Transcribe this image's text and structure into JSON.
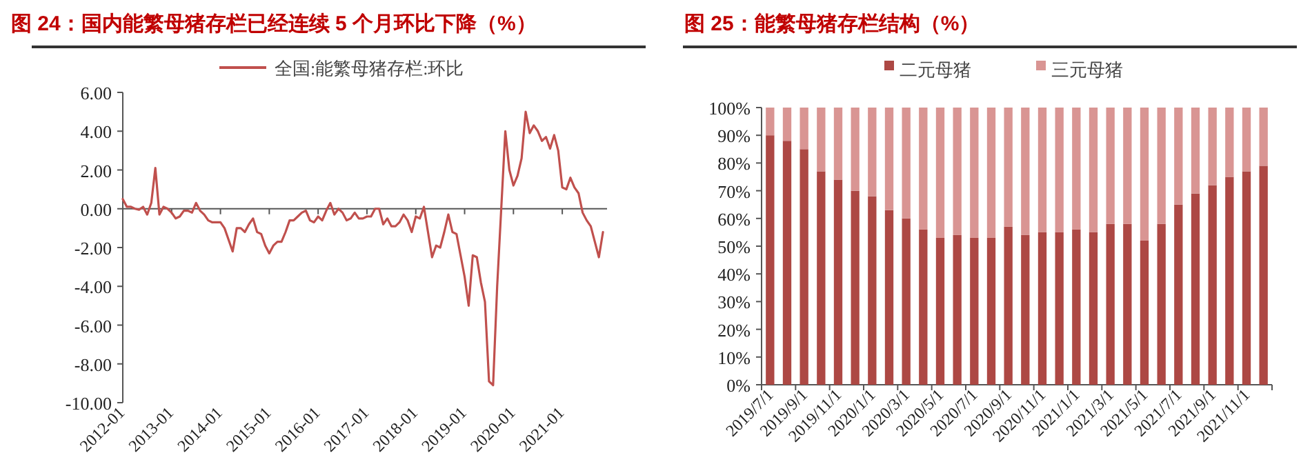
{
  "chart_data": [
    {
      "type": "line",
      "title": "图 24：国内能繁母猪存栏已经连续 5 个月环比下降（%）",
      "legend": "top",
      "line_style": "solid",
      "categories": [
        "2012-01",
        null,
        null,
        null,
        null,
        null,
        null,
        null,
        null,
        null,
        null,
        null,
        "2013-01",
        null,
        null,
        null,
        null,
        null,
        null,
        null,
        null,
        null,
        null,
        null,
        "2014-01",
        null,
        null,
        null,
        null,
        null,
        null,
        null,
        null,
        null,
        null,
        null,
        "2015-01",
        null,
        null,
        null,
        null,
        null,
        null,
        null,
        null,
        null,
        null,
        null,
        "2016-01",
        null,
        null,
        null,
        null,
        null,
        null,
        null,
        null,
        null,
        null,
        null,
        "2017-01",
        null,
        null,
        null,
        null,
        null,
        null,
        null,
        null,
        null,
        null,
        null,
        "2018-01",
        null,
        null,
        null,
        null,
        null,
        null,
        null,
        null,
        null,
        null,
        null,
        "2019-01",
        null,
        null,
        null,
        null,
        null,
        null,
        null,
        null,
        null,
        null,
        null,
        "2020-01",
        null,
        null,
        null,
        null,
        null,
        null,
        null,
        null,
        null,
        null,
        null,
        "2021-01",
        null,
        null,
        null,
        null,
        null,
        null,
        null,
        null,
        null,
        null
      ],
      "ylim": [
        -10,
        6
      ],
      "yticks": [
        {
          "value": -10,
          "label": "-10.00"
        },
        {
          "value": -8,
          "label": "-8.00"
        },
        {
          "value": -6,
          "label": "-6.00"
        },
        {
          "value": -4,
          "label": "-4.00"
        },
        {
          "value": -2,
          "label": "-2.00"
        },
        {
          "value": 0,
          "label": "0.00"
        },
        {
          "value": 2,
          "label": "2.00"
        },
        {
          "value": 4,
          "label": "4.00"
        },
        {
          "value": 6,
          "label": "6.00"
        }
      ],
      "series": [
        {
          "name": "全国:能繁母猪存栏:环比",
          "color": "#c0504d",
          "values": [
            0.5,
            0.1,
            0.1,
            0.0,
            -0.05,
            0.1,
            -0.3,
            0.3,
            2.1,
            -0.3,
            0.1,
            0.0,
            -0.2,
            -0.5,
            -0.4,
            -0.1,
            -0.1,
            -0.2,
            0.3,
            -0.1,
            -0.3,
            -0.6,
            -0.7,
            -0.7,
            -0.7,
            -1.0,
            -1.6,
            -2.2,
            -1.0,
            -1.0,
            -1.2,
            -0.8,
            -0.5,
            -1.2,
            -1.3,
            -1.9,
            -2.3,
            -1.9,
            -1.7,
            -1.7,
            -1.2,
            -0.6,
            -0.6,
            -0.4,
            -0.2,
            -0.1,
            -0.6,
            -0.7,
            -0.4,
            -0.6,
            -0.1,
            0.3,
            -0.3,
            0.0,
            -0.2,
            -0.6,
            -0.5,
            -0.2,
            -0.5,
            -0.5,
            -0.4,
            -0.4,
            0.0,
            0.0,
            -0.8,
            -0.5,
            -0.9,
            -0.9,
            -0.7,
            -0.3,
            -0.6,
            -1.2,
            -0.4,
            -0.5,
            0.1,
            -1.2,
            -2.5,
            -1.9,
            -2.0,
            -1.2,
            -0.3,
            -1.2,
            -1.3,
            -2.4,
            -3.5,
            -5.0,
            -2.4,
            -2.5,
            -3.8,
            -4.8,
            -8.9,
            -9.1,
            -4.0,
            0.0,
            4.0,
            2.0,
            1.2,
            1.7,
            2.6,
            5.0,
            3.9,
            4.3,
            4.0,
            3.5,
            3.7,
            3.1,
            3.8,
            3.0,
            1.1,
            1.0,
            1.6,
            1.1,
            0.8,
            -0.2,
            -0.6,
            -0.9,
            -1.7,
            -2.5,
            -1.2
          ]
        }
      ]
    },
    {
      "type": "bar",
      "stacked": true,
      "title": "图 25：能繁母猪存栏结构（%）",
      "legend": "top",
      "categories": [
        "2019/7/1",
        null,
        "2019/9/1",
        null,
        "2019/11/1",
        null,
        "2020/1/1",
        null,
        "2020/3/1",
        null,
        "2020/5/1",
        null,
        "2020/7/1",
        null,
        "2020/9/1",
        null,
        "2020/11/1",
        null,
        "2021/1/1",
        null,
        "2021/3/1",
        null,
        "2021/5/1",
        null,
        "2021/7/1",
        null,
        "2021/9/1",
        null,
        "2021/11/1",
        null
      ],
      "ylim": [
        0,
        100
      ],
      "yticks": [
        {
          "value": 0,
          "label": "0%"
        },
        {
          "value": 10,
          "label": "10%"
        },
        {
          "value": 20,
          "label": "20%"
        },
        {
          "value": 30,
          "label": "30%"
        },
        {
          "value": 40,
          "label": "40%"
        },
        {
          "value": 50,
          "label": "50%"
        },
        {
          "value": 60,
          "label": "60%"
        },
        {
          "value": 70,
          "label": "70%"
        },
        {
          "value": 80,
          "label": "80%"
        },
        {
          "value": 90,
          "label": "90%"
        },
        {
          "value": 100,
          "label": "100%"
        }
      ],
      "series": [
        {
          "name": "二元母猪",
          "color": "#ad4844",
          "values": [
            90,
            88,
            85,
            77,
            74,
            70,
            68,
            63,
            60,
            56,
            53,
            54,
            53,
            53,
            57,
            54,
            55,
            55,
            56,
            55,
            58,
            58,
            52,
            58,
            65,
            69,
            72,
            75,
            77,
            79
          ]
        },
        {
          "name": "三元母猪",
          "color": "#d99593",
          "values": [
            10,
            12,
            15,
            23,
            26,
            30,
            32,
            37,
            40,
            44,
            47,
            46,
            47,
            47,
            43,
            46,
            45,
            45,
            44,
            45,
            42,
            42,
            48,
            42,
            35,
            31,
            28,
            25,
            23,
            21
          ]
        }
      ]
    }
  ]
}
